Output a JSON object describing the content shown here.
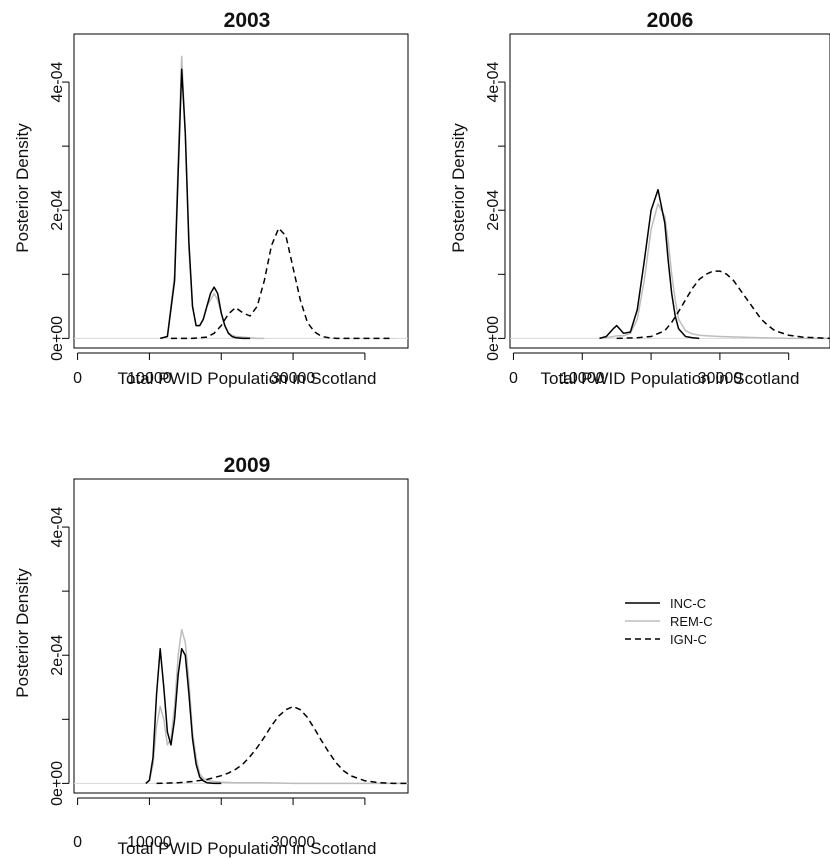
{
  "chart_data": [
    {
      "type": "line",
      "title": "2003",
      "xlabel": "Total PWID Population in Scotland",
      "ylabel": "Posterior Density",
      "xlim": [
        -500,
        46000
      ],
      "ylim": [
        -1.5e-05,
        0.000475
      ],
      "xticks": [
        0,
        10000,
        30000
      ],
      "xtick_labels": [
        "0",
        "10000",
        "30000"
      ],
      "xtick_marks": [
        0,
        10000,
        20000,
        30000,
        40000
      ],
      "yticks": [
        0,
        0.0002,
        0.0004
      ],
      "ytick_labels": [
        "0e+00",
        "2e-04",
        "4e-04"
      ],
      "ytick_marks": [
        0,
        0.0001,
        0.0002,
        0.0003,
        0.0004
      ],
      "series": [
        {
          "name": "INC-C",
          "color": "#000000",
          "dash": "solid",
          "x": [
            11500,
            12500,
            13500,
            14000,
            14500,
            15000,
            15500,
            16000,
            16500,
            17000,
            17500,
            18000,
            18500,
            19000,
            19500,
            20000,
            20500,
            21000,
            21500,
            22000,
            23000,
            24000
          ],
          "y": [
            0,
            3e-06,
            9e-05,
            0.00026,
            0.00042,
            0.00032,
            0.00015,
            5e-05,
            2e-05,
            2e-05,
            3e-05,
            5e-05,
            7e-05,
            8e-05,
            7e-05,
            4e-05,
            2e-05,
            8e-06,
            3e-06,
            1e-06,
            0,
            0
          ]
        },
        {
          "name": "REM-C",
          "color": "#bdbdbd",
          "dash": "solid",
          "x": [
            11500,
            12500,
            13500,
            14000,
            14500,
            15000,
            15500,
            16000,
            16500,
            17000,
            17500,
            18000,
            18500,
            19000,
            19500,
            20000,
            20500,
            21000,
            21500,
            22000,
            23000,
            24000,
            25000,
            26000
          ],
          "y": [
            0,
            3e-06,
            0.0001,
            0.00028,
            0.00044,
            0.00032,
            0.00014,
            5e-05,
            2e-05,
            2e-05,
            3e-05,
            5e-05,
            6e-05,
            7e-05,
            6e-05,
            4e-05,
            2e-05,
            9e-06,
            5e-06,
            3e-06,
            2e-06,
            1e-06,
            0,
            0
          ]
        },
        {
          "name": "IGN-C",
          "color": "#000000",
          "dash": "dashed",
          "x": [
            13000,
            16000,
            18000,
            19000,
            20000,
            21000,
            22000,
            23000,
            24000,
            25000,
            26000,
            27000,
            28000,
            29000,
            30000,
            31000,
            32000,
            33000,
            34000,
            35000,
            36000,
            38000,
            42000,
            44000
          ],
          "y": [
            0,
            0,
            2e-06,
            8e-06,
            2e-05,
            3.8e-05,
            4.8e-05,
            4e-05,
            3.5e-05,
            5e-05,
            9e-05,
            0.000145,
            0.000172,
            0.00016,
            0.00011,
            6e-05,
            2.5e-05,
            1e-05,
            3e-06,
            1e-06,
            0,
            0,
            0,
            0
          ]
        }
      ]
    },
    {
      "type": "line",
      "title": "2006",
      "xlabel": "Total PWID Population in Scotland",
      "ylabel": "Posterior Density",
      "xlim": [
        -500,
        46000
      ],
      "ylim": [
        -1.5e-05,
        0.000475
      ],
      "xticks": [
        0,
        10000,
        30000
      ],
      "xtick_labels": [
        "0",
        "10000",
        "30000"
      ],
      "xtick_marks": [
        0,
        10000,
        20000,
        30000,
        40000
      ],
      "yticks": [
        0,
        0.0002,
        0.0004
      ],
      "ytick_labels": [
        "0e+00",
        "2e-04",
        "4e-04"
      ],
      "ytick_marks": [
        0,
        0.0001,
        0.0002,
        0.0003,
        0.0004
      ],
      "series": [
        {
          "name": "INC-C",
          "color": "#000000",
          "dash": "solid",
          "x": [
            12500,
            13500,
            14500,
            15000,
            15500,
            16000,
            17000,
            18000,
            19000,
            20000,
            21000,
            22000,
            22500,
            23000,
            23500,
            24000,
            25000,
            26000,
            27000
          ],
          "y": [
            0,
            3e-06,
            1.5e-05,
            2e-05,
            1.4e-05,
            8e-06,
            1e-05,
            4.5e-05,
            0.00012,
            0.0002,
            0.000232,
            0.00018,
            0.00012,
            7e-05,
            3.5e-05,
            1.5e-05,
            3e-06,
            1e-06,
            0
          ]
        },
        {
          "name": "REM-C",
          "color": "#bdbdbd",
          "dash": "solid",
          "x": [
            12500,
            14000,
            15000,
            16000,
            17000,
            18000,
            19000,
            20000,
            21000,
            22000,
            22500,
            23000,
            23500,
            24000,
            25000,
            26000,
            27000,
            28000,
            30000,
            33000,
            36000,
            40000,
            46000
          ],
          "y": [
            0,
            2e-06,
            4e-06,
            4e-06,
            8e-06,
            3e-05,
            9e-05,
            0.00017,
            0.00021,
            0.00019,
            0.00015,
            0.0001,
            6e-05,
            3e-05,
            1.2e-05,
            7e-06,
            5e-06,
            4e-06,
            3e-06,
            2e-06,
            1e-06,
            0,
            0
          ]
        },
        {
          "name": "IGN-C",
          "color": "#000000",
          "dash": "dashed",
          "x": [
            15000,
            18000,
            20000,
            22000,
            23000,
            24000,
            25000,
            26000,
            27000,
            28000,
            29000,
            30000,
            31000,
            32000,
            33000,
            34000,
            35000,
            36000,
            37000,
            38000,
            40000,
            42000,
            44000,
            46000
          ],
          "y": [
            0,
            1e-06,
            3e-06,
            1.2e-05,
            2.5e-05,
            4.2e-05,
            6e-05,
            7.8e-05,
            9.2e-05,
            0.0001,
            0.000105,
            0.000105,
            0.0001,
            9e-05,
            7.5e-05,
            6e-05,
            4.5e-05,
            3e-05,
            2e-05,
            1.2e-05,
            5e-06,
            2e-06,
            1e-06,
            0
          ]
        }
      ]
    },
    {
      "type": "line",
      "title": "2009",
      "xlabel": "Total PWID Population in Scotland",
      "ylabel": "Posterior Density",
      "xlim": [
        -500,
        46000
      ],
      "ylim": [
        -1.5e-05,
        0.000475
      ],
      "xticks": [
        0,
        10000,
        30000
      ],
      "xtick_labels": [
        "0",
        "10000",
        "30000"
      ],
      "xtick_marks": [
        0,
        10000,
        20000,
        30000,
        40000
      ],
      "yticks": [
        0,
        0.0002,
        0.0004
      ],
      "ytick_labels": [
        "0e+00",
        "2e-04",
        "4e-04"
      ],
      "ytick_marks": [
        0,
        0.0001,
        0.0002,
        0.0003,
        0.0004
      ],
      "series": [
        {
          "name": "INC-C",
          "color": "#000000",
          "dash": "solid",
          "x": [
            9500,
            10000,
            10500,
            11000,
            11500,
            12000,
            12500,
            13000,
            13500,
            14000,
            14500,
            15000,
            15500,
            16000,
            16500,
            17000,
            17500,
            18000,
            19000,
            20000
          ],
          "y": [
            0,
            5e-06,
            4e-05,
            0.00014,
            0.00021,
            0.00015,
            8e-05,
            6e-05,
            0.0001,
            0.00017,
            0.00021,
            0.0002,
            0.00014,
            7e-05,
            3e-05,
            1e-05,
            4e-06,
            1e-06,
            0,
            0
          ]
        },
        {
          "name": "REM-C",
          "color": "#bdbdbd",
          "dash": "solid",
          "x": [
            9500,
            10000,
            10500,
            11000,
            11500,
            12000,
            12500,
            13000,
            13500,
            14000,
            14500,
            15000,
            15500,
            16000,
            16500,
            17000,
            17500,
            18000,
            19000,
            20000,
            22000,
            26000,
            30000,
            36000,
            42000,
            46000
          ],
          "y": [
            0,
            4e-06,
            3e-05,
            9e-05,
            0.00012,
            0.0001,
            6e-05,
            7e-05,
            0.00012,
            0.0002,
            0.00024,
            0.00022,
            0.00016,
            8e-05,
            4e-05,
            1.5e-05,
            8e-06,
            5e-06,
            3e-06,
            2e-06,
            1e-06,
            1e-06,
            0,
            0,
            0,
            0
          ]
        },
        {
          "name": "IGN-C",
          "color": "#000000",
          "dash": "dashed",
          "x": [
            11000,
            14000,
            16000,
            18000,
            20000,
            21000,
            22000,
            23000,
            24000,
            25000,
            26000,
            27000,
            28000,
            29000,
            30000,
            31000,
            32000,
            33000,
            34000,
            35000,
            36000,
            37000,
            38000,
            40000,
            42000,
            44000,
            46000
          ],
          "y": [
            0,
            1e-06,
            3e-06,
            6e-06,
            1.2e-05,
            1.6e-05,
            2.2e-05,
            3e-05,
            4.2e-05,
            5.6e-05,
            7.2e-05,
            9e-05,
            0.000105,
            0.000115,
            0.00012,
            0.000115,
            0.000103,
            8.5e-05,
            6.6e-05,
            4.8e-05,
            3.2e-05,
            2e-05,
            1.2e-05,
            4e-06,
            1e-06,
            0,
            0
          ]
        }
      ]
    }
  ],
  "legend": {
    "placement": "right of bottom-left panel",
    "entries": [
      {
        "label": "INC-C",
        "color": "#000000",
        "dash": "solid"
      },
      {
        "label": "REM-C",
        "color": "#bdbdbd",
        "dash": "solid"
      },
      {
        "label": "IGN-C",
        "color": "#000000",
        "dash": "dashed"
      }
    ]
  }
}
